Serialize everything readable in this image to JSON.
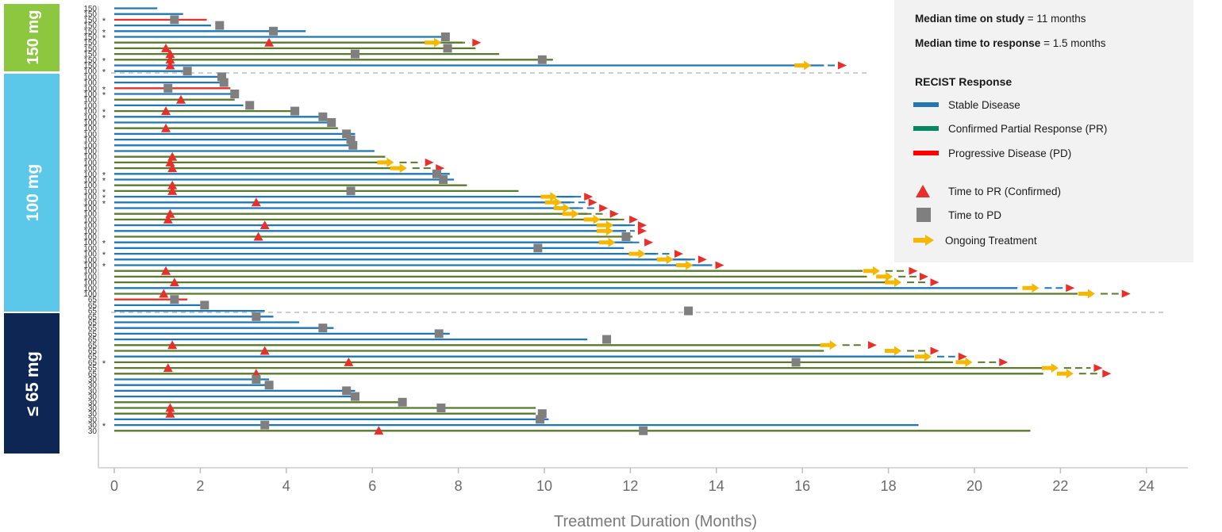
{
  "colors": {
    "stable": "#1f77b4",
    "confirmed_pr": "#5a7a2e",
    "pd": "#e8302a",
    "triangle": "#e8302a",
    "square": "#7f7f7f",
    "arrow": "#f5b800",
    "band_150": "#8dc63f",
    "band_100": "#5bc8ea",
    "band_65": "#0d2653"
  },
  "bands": [
    {
      "label": "150 mg"
    },
    {
      "label": "100 mg"
    },
    {
      "label": "≤ 65 mg"
    }
  ],
  "legend": {
    "median_time_on_study_label": "Median time on study",
    "median_time_on_study_value": "= 11 months",
    "median_time_to_response_label": "Median time to response",
    "median_time_to_response_value": "= 1.5 months",
    "heading": "RECIST Response",
    "stable": "Stable Disease",
    "confirmed_pr": "Confirmed Partial Response (PR)",
    "pd": "Progressive Disease (PD)",
    "triangle": "Time to PR (Confirmed)",
    "square": "Time to PD",
    "arrow": "Ongoing Treatment"
  },
  "chart_data": {
    "type": "swimmer",
    "xlabel": "Treatment Duration (Months)",
    "xlim": [
      0,
      24
    ],
    "xticks": [
      0,
      2,
      4,
      6,
      8,
      10,
      12,
      14,
      16,
      18,
      20,
      22,
      24
    ],
    "rows": [
      {
        "dose": "150",
        "resp": "SD",
        "end": 1.0
      },
      {
        "dose": "150",
        "resp": "SD",
        "end": 1.6
      },
      {
        "dose": "150",
        "resp": "PD",
        "end": 2.15,
        "star": true,
        "pd": 1.4
      },
      {
        "dose": "150",
        "resp": "SD",
        "end": 2.25,
        "pd": 2.45
      },
      {
        "dose": "150",
        "resp": "SD",
        "end": 4.45,
        "star": true,
        "pd": 3.7
      },
      {
        "dose": "150",
        "resp": "SD",
        "end": 7.7,
        "star": true,
        "pd": 7.7
      },
      {
        "dose": "150",
        "resp": "PR",
        "end": 8.1,
        "pr": 3.6,
        "arrow": 7.4,
        "flag": 8.4
      },
      {
        "dose": "150",
        "resp": "PR",
        "end": 8.4,
        "pr": 1.2,
        "pd": 7.75
      },
      {
        "dose": "150",
        "resp": "PR",
        "end": 8.95,
        "pr": 1.3,
        "pd": 5.6
      },
      {
        "dose": "150",
        "resp": "PR",
        "end": 10.2,
        "star": true,
        "pr": 1.3,
        "pd": 9.95
      },
      {
        "dose": "150",
        "resp": "SD",
        "end": 16.5,
        "pr": 1.3,
        "arrow": 16.0,
        "flag": 16.9
      },
      {
        "dose": "100",
        "resp": "SD",
        "end": 1.6,
        "star": true,
        "pd": 1.7
      },
      {
        "dose": "100",
        "resp": "SD",
        "end": 2.4,
        "pd": 2.5
      },
      {
        "dose": "100",
        "resp": "SD",
        "end": 2.45,
        "pd": 2.55
      },
      {
        "dose": "100",
        "resp": "PD",
        "end": 2.7,
        "star": true,
        "pd": 1.25
      },
      {
        "dose": "100",
        "resp": "SD",
        "end": 2.8,
        "star": true,
        "pd": 2.8
      },
      {
        "dose": "100",
        "resp": "PR",
        "end": 2.8,
        "pr": 1.55
      },
      {
        "dose": "100",
        "resp": "SD",
        "end": 3.0,
        "pd": 3.15
      },
      {
        "dose": "100",
        "resp": "PR",
        "end": 4.2,
        "star": true,
        "pr": 1.2,
        "pd": 4.2
      },
      {
        "dose": "100",
        "resp": "SD",
        "end": 4.8,
        "star": true,
        "pd": 4.85
      },
      {
        "dose": "100",
        "resp": "SD",
        "end": 5.0,
        "pd": 5.05
      },
      {
        "dose": "100",
        "resp": "PR",
        "end": 5.2,
        "pr": 1.2
      },
      {
        "dose": "100",
        "resp": "SD",
        "end": 5.6,
        "pd": 5.4
      },
      {
        "dose": "100",
        "resp": "SD",
        "end": 5.55,
        "pd": 5.5
      },
      {
        "dose": "100",
        "resp": "SD",
        "end": 5.6,
        "pd": 5.55
      },
      {
        "dose": "100",
        "resp": "SD",
        "end": 6.05
      },
      {
        "dose": "100",
        "resp": "PR",
        "end": 6.3,
        "pr": 1.35
      },
      {
        "dose": "100",
        "resp": "PR",
        "end": 6.3,
        "pr": 1.3,
        "arrow": 6.3,
        "flag": 7.3
      },
      {
        "dose": "100",
        "resp": "PR",
        "end": 6.7,
        "pr": 1.35,
        "arrow": 6.6,
        "flag": 7.55
      },
      {
        "dose": "100",
        "resp": "SD",
        "end": 7.8,
        "star": true,
        "pd": 7.5
      },
      {
        "dose": "100",
        "resp": "SD",
        "end": 7.9,
        "star": true,
        "pd": 7.65
      },
      {
        "dose": "100",
        "resp": "PR",
        "end": 8.2,
        "pr": 1.35
      },
      {
        "dose": "100",
        "resp": "PR",
        "end": 9.4,
        "star": true,
        "pr": 1.35,
        "pd": 5.5
      },
      {
        "dose": "100",
        "resp": "SD",
        "end": 10.7,
        "star": true,
        "arrow": 10.1,
        "flag": 11.0
      },
      {
        "dose": "100",
        "resp": "SD",
        "end": 10.6,
        "star": true,
        "pr": 3.3,
        "arrow": 10.2,
        "flag": 11.1
      },
      {
        "dose": "100",
        "resp": "SD",
        "end": 10.8,
        "arrow": 10.4,
        "flag": 11.35
      },
      {
        "dose": "100",
        "resp": "PR",
        "end": 11.0,
        "pr": 1.3,
        "arrow": 10.6,
        "flag": 11.6
      },
      {
        "dose": "100",
        "resp": "PR",
        "end": 11.7,
        "pr": 1.25,
        "arrow": 11.1,
        "flag": 12.05
      },
      {
        "dose": "100",
        "resp": "SD",
        "end": 12.0,
        "pr": 3.5,
        "arrow": 11.4,
        "flag": 12.25
      },
      {
        "dose": "100",
        "resp": "SD",
        "end": 11.9,
        "arrow": 11.4,
        "flag": 12.25
      },
      {
        "dose": "100",
        "resp": "PR",
        "end": 12.05,
        "pr": 3.35,
        "pd": 11.9
      },
      {
        "dose": "100",
        "resp": "SD",
        "end": 12.05,
        "star": true,
        "arrow": 11.45,
        "flag": 12.4
      },
      {
        "dose": "100",
        "resp": "SD",
        "end": 11.85,
        "pd": 9.85
      },
      {
        "dose": "100",
        "resp": "SD",
        "end": 12.6,
        "star": true,
        "arrow": 12.15,
        "flag": 13.1
      },
      {
        "dose": "100",
        "resp": "SD",
        "end": 13.4,
        "arrow": 12.8,
        "flag": 13.65
      },
      {
        "dose": "100",
        "resp": "SD",
        "end": 13.9,
        "star": true,
        "arrow": 13.25,
        "flag": 14.05
      },
      {
        "dose": "100",
        "resp": "PR",
        "end": 17.4,
        "pr": 1.2,
        "arrow": 17.6,
        "flag": 18.55
      },
      {
        "dose": "100",
        "resp": "PR",
        "end": 17.5,
        "arrow": 17.9,
        "flag": 18.8
      },
      {
        "dose": "100",
        "resp": "PR",
        "end": 18.0,
        "pr": 1.4,
        "arrow": 18.1,
        "flag": 19.05
      },
      {
        "dose": "100",
        "resp": "SD",
        "end": 21.0,
        "arrow": 21.3,
        "flag": 22.2
      },
      {
        "dose": "100",
        "resp": "PR",
        "end": 22.4,
        "pr": 1.15,
        "arrow": 22.6,
        "flag": 23.5
      },
      {
        "dose": "65",
        "resp": "PD",
        "end": 1.7,
        "pd": 1.4
      },
      {
        "dose": "65",
        "resp": "SD",
        "end": 2.0,
        "pd": 2.1
      },
      {
        "dose": "65",
        "resp": "SD",
        "end": 3.5,
        "pd": 13.35
      },
      {
        "dose": "65",
        "resp": "SD",
        "end": 3.7,
        "pd": 3.3
      },
      {
        "dose": "65",
        "resp": "SD",
        "end": 4.3
      },
      {
        "dose": "65",
        "resp": "SD",
        "end": 5.1,
        "pd": 4.85
      },
      {
        "dose": "65",
        "resp": "SD",
        "end": 7.8,
        "pd": 7.55
      },
      {
        "dose": "65",
        "resp": "SD",
        "end": 11.0,
        "pd": 11.45
      },
      {
        "dose": "65",
        "resp": "PR",
        "end": 16.5,
        "pr": 1.35,
        "arrow": 16.6,
        "flag": 17.6
      },
      {
        "dose": "65",
        "resp": "PR",
        "end": 16.5,
        "pr": 3.5,
        "arrow": 18.1,
        "flag": 19.05
      },
      {
        "dose": "65",
        "resp": "SD",
        "end": 18.6,
        "arrow": 18.8,
        "flag": 19.7
      },
      {
        "dose": "65",
        "resp": "PR",
        "end": 19.5,
        "star": true,
        "pr": 5.45,
        "pd": 15.85,
        "arrow": 19.75,
        "flag": 20.65
      },
      {
        "dose": "65",
        "resp": "PR",
        "end": 21.6,
        "pr": 1.25,
        "arrow": 21.75,
        "flag": 22.85
      },
      {
        "dose": "65",
        "resp": "PR",
        "end": 21.6,
        "pr": 3.3,
        "arrow": 22.1,
        "flag": 23.05
      },
      {
        "dose": "30",
        "resp": "SD",
        "end": 3.6,
        "pd": 3.3
      },
      {
        "dose": "30",
        "resp": "SD",
        "end": 3.6,
        "pd": 3.6
      },
      {
        "dose": "30",
        "resp": "SD",
        "end": 5.6,
        "pd": 5.4
      },
      {
        "dose": "30",
        "resp": "SD",
        "end": 5.6,
        "pd": 5.6
      },
      {
        "dose": "30",
        "resp": "PR",
        "end": 6.7,
        "pd": 6.7
      },
      {
        "dose": "30",
        "resp": "PR",
        "end": 9.8,
        "pr": 1.3,
        "pd": 7.6
      },
      {
        "dose": "30",
        "resp": "PR",
        "end": 9.8,
        "pr": 1.3,
        "pd": 9.95
      },
      {
        "dose": "30",
        "resp": "SD",
        "end": 10.1,
        "pd": 9.9
      },
      {
        "dose": "30",
        "resp": "SD",
        "end": 18.7,
        "star": true,
        "pd": 3.5
      },
      {
        "dose": "30",
        "resp": "PR",
        "end": 21.3,
        "pr": 6.15,
        "pd": 12.3
      }
    ]
  }
}
